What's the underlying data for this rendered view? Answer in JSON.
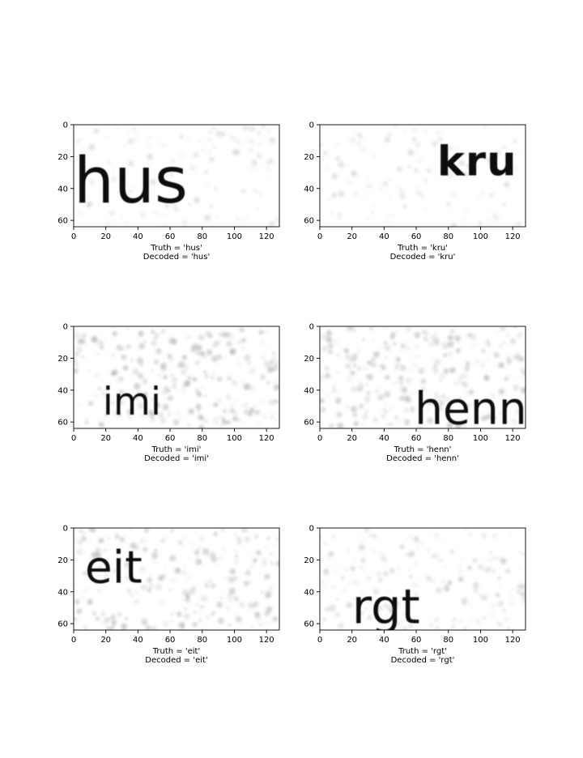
{
  "chart_data": [
    {
      "type": "image",
      "word": "hus",
      "truth_label": "Truth = 'hus'",
      "decoded_label": "Decoded = 'hus'",
      "x_ticks": [
        0,
        20,
        40,
        60,
        80,
        100,
        120
      ],
      "y_ticks": [
        0,
        20,
        40,
        60
      ],
      "xlim": [
        0,
        128
      ],
      "ylim": [
        64,
        0
      ],
      "noise": 0.15,
      "glyph": {
        "font": "sans",
        "weight": "normal",
        "x": 0,
        "y": 20,
        "size": 40,
        "spacing": 0
      }
    },
    {
      "type": "image",
      "word": "kru",
      "truth_label": "Truth = 'kru'",
      "decoded_label": "Decoded = 'kru'",
      "x_ticks": [
        0,
        20,
        40,
        60,
        80,
        100,
        120
      ],
      "y_ticks": [
        0,
        20,
        40,
        60
      ],
      "xlim": [
        0,
        128
      ],
      "ylim": [
        64,
        0
      ],
      "noise": 0.15,
      "glyph": {
        "font": "mono",
        "weight": "bold",
        "x": 73,
        "y": 13,
        "size": 26,
        "spacing": 1
      }
    },
    {
      "type": "image",
      "word": "imi",
      "truth_label": "Truth = 'imi'",
      "decoded_label": "Decoded = 'imi'",
      "x_ticks": [
        0,
        20,
        40,
        60,
        80,
        100,
        120
      ],
      "y_ticks": [
        0,
        20,
        40,
        60
      ],
      "xlim": [
        0,
        128
      ],
      "ylim": [
        64,
        0
      ],
      "noise": 0.5,
      "glyph": {
        "font": "mono",
        "weight": "normal",
        "x": 18,
        "y": 38,
        "size": 24,
        "spacing": 0
      }
    },
    {
      "type": "image",
      "word": "henn",
      "truth_label": "Truth = 'henn'",
      "decoded_label": "Decoded = 'henn'",
      "x_ticks": [
        0,
        20,
        40,
        60,
        80,
        100,
        120
      ],
      "y_ticks": [
        0,
        20,
        40,
        60
      ],
      "xlim": [
        0,
        128
      ],
      "ylim": [
        64,
        0
      ],
      "noise": 0.5,
      "glyph": {
        "font": "sans",
        "weight": "normal",
        "x": 59,
        "y": 41,
        "size": 28,
        "spacing": 0
      }
    },
    {
      "type": "image",
      "word": "eit",
      "truth_label": "Truth = 'eit'",
      "decoded_label": "Decoded = 'eit'",
      "x_ticks": [
        0,
        20,
        40,
        60,
        80,
        100,
        120
      ],
      "y_ticks": [
        0,
        20,
        40,
        60
      ],
      "xlim": [
        0,
        128
      ],
      "ylim": [
        64,
        0
      ],
      "noise": 0.45,
      "glyph": {
        "font": "sans",
        "weight": "normal",
        "x": 7,
        "y": 14,
        "size": 28,
        "spacing": 0
      }
    },
    {
      "type": "image",
      "word": "rgt",
      "truth_label": "Truth = 'rgt'",
      "decoded_label": "Decoded = 'rgt'",
      "x_ticks": [
        0,
        20,
        40,
        60,
        80,
        100,
        120
      ],
      "y_ticks": [
        0,
        20,
        40,
        60
      ],
      "xlim": [
        0,
        128
      ],
      "ylim": [
        64,
        0
      ],
      "noise": 0.3,
      "glyph": {
        "font": "sans",
        "weight": "normal",
        "x": 20,
        "y": 38,
        "size": 30,
        "spacing": 0
      }
    }
  ],
  "colors": {
    "ink": "#111111",
    "noise": "#9a9a9a",
    "axis": "#000000",
    "background": "#ffffff"
  }
}
